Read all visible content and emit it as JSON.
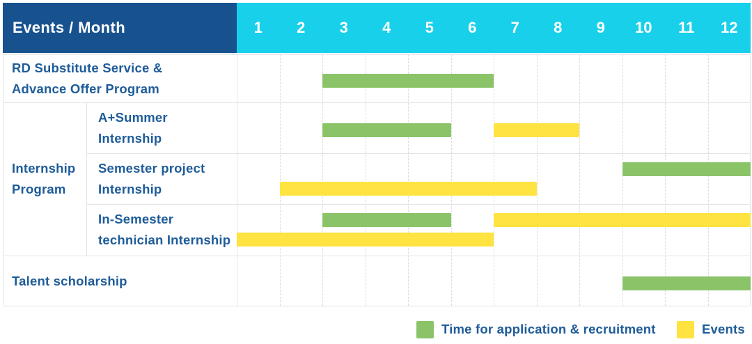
{
  "palette": {
    "navy": "#17528f",
    "cyan": "#18d0e9",
    "green": "#8bc468",
    "yellow": "#ffe340",
    "text_blue": "#1e5c99",
    "grid": "#e4e4e4"
  },
  "header": {
    "title": "Events / Month",
    "months": [
      "1",
      "2",
      "3",
      "4",
      "5",
      "6",
      "7",
      "8",
      "9",
      "10",
      "11",
      "12"
    ]
  },
  "chart_data": {
    "type": "gantt",
    "unit": "month",
    "axis_months": [
      1,
      2,
      3,
      4,
      5,
      6,
      7,
      8,
      9,
      10,
      11,
      12
    ],
    "group": {
      "label_lines": [
        "Internship",
        "Program"
      ],
      "member_rows": [
        "a-plus-summer-internship",
        "semester-project-internship",
        "in-semester-technician-internship"
      ]
    },
    "rows": [
      {
        "id": "rd-substitute-advance-offer",
        "label_lines": [
          "RD Substitute Service &",
          "Advance Offer Program"
        ],
        "bars": [
          {
            "color": "green",
            "start": 3,
            "end": 6,
            "line": "mid"
          }
        ]
      },
      {
        "id": "a-plus-summer-internship",
        "label_lines": [
          "A+Summer",
          "Internship"
        ],
        "bars": [
          {
            "color": "green",
            "start": 3,
            "end": 5,
            "line": "mid"
          },
          {
            "color": "yellow",
            "start": 7,
            "end": 8,
            "line": "mid"
          }
        ]
      },
      {
        "id": "semester-project-internship",
        "label_lines": [
          "Semester project",
          "Internship"
        ],
        "bars": [
          {
            "color": "green",
            "start": 10,
            "end": 12,
            "line": "top"
          },
          {
            "color": "yellow",
            "start": 2,
            "end": 7,
            "line": "bottom"
          }
        ]
      },
      {
        "id": "in-semester-technician-internship",
        "label_lines": [
          "In-Semester",
          "technician Internship"
        ],
        "bars": [
          {
            "color": "green",
            "start": 3,
            "end": 5,
            "line": "top"
          },
          {
            "color": "yellow",
            "start": 7,
            "end": 12,
            "line": "top"
          },
          {
            "color": "yellow",
            "start": 1,
            "end": 6,
            "line": "bottom"
          }
        ]
      },
      {
        "id": "talent-scholarship",
        "label_lines": [
          "Talent scholarship"
        ],
        "bars": [
          {
            "color": "green",
            "start": 10,
            "end": 12,
            "line": "mid"
          }
        ]
      }
    ]
  },
  "legend": {
    "items": [
      {
        "color": "green",
        "label": "Time for application & recruitment"
      },
      {
        "color": "yellow",
        "label": "Events"
      }
    ]
  }
}
